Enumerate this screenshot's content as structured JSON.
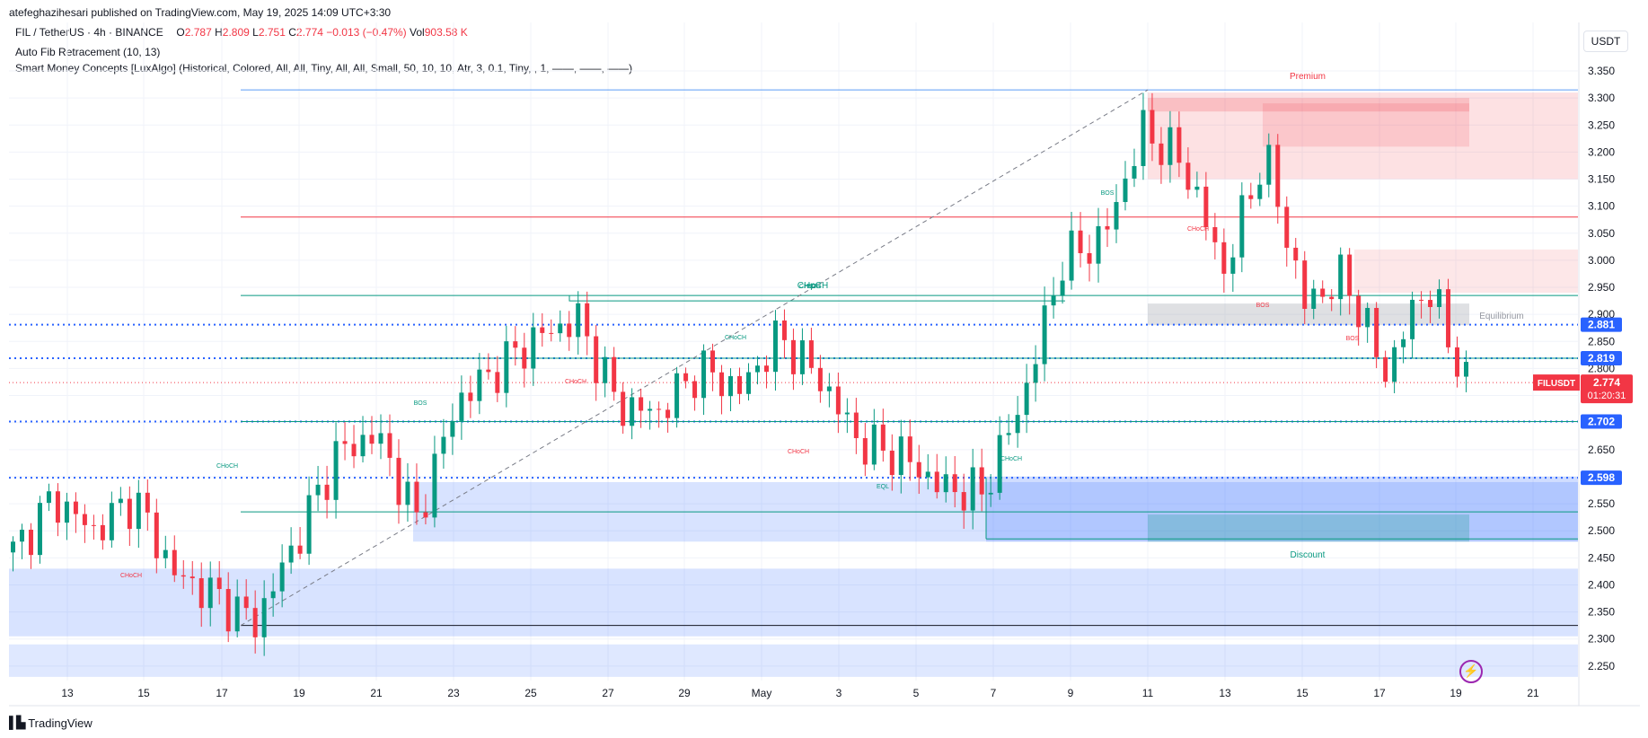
{
  "publisher": "atefeghazihesari published on TradingView.com, May 19, 2025 14:09 UTC+3:30",
  "legend": {
    "symbol": "FIL / TetherUS · 4h · BINANCE",
    "o_label": "O",
    "o": "2.787",
    "h_label": "H",
    "h": "2.809",
    "l_label": "L",
    "l": "2.751",
    "c_label": "C",
    "c": "2.774",
    "change": "−0.013 (−0.47%)",
    "vol_label": "Vol",
    "vol": "903.58 K",
    "indicator1": "Auto Fib Retracement (10, 13)",
    "indicator2": "Smart Money Concepts [LuxAlgo] (Historical, Colored, All, All, Tiny, All, All, Small, 50, 10, 10, Atr, 3, 0.1, Tiny, , 1, ——, ——, ——)"
  },
  "currency": "USDT",
  "footer": {
    "brand": "TradingView"
  },
  "colors": {
    "up": "#089981",
    "down": "#f23645",
    "premium": "#f23645",
    "discount": "#2962ff",
    "fib": "#2962ff"
  },
  "chart_data": {
    "type": "candlestick",
    "symbol": "FILUSDT",
    "timeframe": "4h",
    "ylim": [
      2.22,
      3.37
    ],
    "y_ticks": [
      "3.350",
      "3.300",
      "3.250",
      "3.200",
      "3.150",
      "3.100",
      "3.050",
      "3.000",
      "2.950",
      "2.900",
      "2.850",
      "2.800",
      "2.750",
      "2.700",
      "2.650",
      "2.600",
      "2.550",
      "2.500",
      "2.450",
      "2.400",
      "2.350",
      "2.300",
      "2.250"
    ],
    "x_ticks": [
      "13",
      "15",
      "17",
      "19",
      "21",
      "23",
      "25",
      "27",
      "29",
      "May",
      "3",
      "5",
      "7",
      "9",
      "11",
      "13",
      "15",
      "17",
      "19",
      "21"
    ],
    "price_labels": [
      {
        "text": "2.881",
        "value": 2.881
      },
      {
        "text": "2.819",
        "value": 2.819
      },
      {
        "text": "2.702",
        "value": 2.702
      },
      {
        "text": "2.598",
        "value": 2.598
      }
    ],
    "last_price": {
      "symbol": "FILUSDT",
      "value": "2.774",
      "countdown": "01:20:31"
    },
    "zone_labels": {
      "premium": "Premium",
      "equilibrium": "Equilibrium",
      "discount": "Discount"
    },
    "structure_labels": [
      "CHoCH",
      "BOS",
      "CHoCH",
      "CHoCH",
      "CHoCH",
      "CHoCH",
      "CHoCH",
      "BOS",
      "EQL",
      "CHoCH",
      "CHoCH",
      "BOS",
      "BOS",
      "BOS"
    ],
    "candles_ohlc_keypoints": [
      {
        "x": "Apr 12",
        "close": 2.46
      },
      {
        "x": "Apr 13",
        "close": 2.56
      },
      {
        "x": "Apr 14",
        "close": 2.5
      },
      {
        "x": "Apr 15",
        "close": 2.56
      },
      {
        "x": "Apr 16",
        "close": 2.42
      },
      {
        "x": "Apr 17",
        "close": 2.38
      },
      {
        "x": "Apr 17",
        "close": 2.33
      },
      {
        "x": "Apr 19",
        "close": 2.48
      },
      {
        "x": "Apr 20",
        "close": 2.64
      },
      {
        "x": "Apr 21",
        "close": 2.68
      },
      {
        "x": "Apr 22",
        "close": 2.52
      },
      {
        "x": "Apr 23",
        "close": 2.74
      },
      {
        "x": "Apr 24",
        "close": 2.8
      },
      {
        "x": "Apr 25",
        "close": 2.86
      },
      {
        "x": "Apr 26",
        "close": 2.89
      },
      {
        "x": "Apr 27",
        "close": 2.73
      },
      {
        "x": "Apr 28",
        "close": 2.72
      },
      {
        "x": "Apr 29",
        "close": 2.8
      },
      {
        "x": "May 1",
        "close": 2.76
      },
      {
        "x": "May 2",
        "close": 2.86
      },
      {
        "x": "May 3",
        "close": 2.78
      },
      {
        "x": "May 4",
        "close": 2.66
      },
      {
        "x": "May 5",
        "close": 2.64
      },
      {
        "x": "May 6",
        "close": 2.58
      },
      {
        "x": "May 7",
        "close": 2.57
      },
      {
        "x": "May 8",
        "close": 2.74
      },
      {
        "x": "May 9",
        "close": 3.0
      },
      {
        "x": "May 10",
        "close": 3.04
      },
      {
        "x": "May 11",
        "close": 3.24
      },
      {
        "x": "May 12",
        "close": 3.18
      },
      {
        "x": "May 13",
        "close": 2.98
      },
      {
        "x": "May 14",
        "close": 3.2
      },
      {
        "x": "May 15",
        "close": 2.92
      },
      {
        "x": "May 16",
        "close": 2.97
      },
      {
        "x": "May 17",
        "close": 2.79
      },
      {
        "x": "May 18",
        "close": 2.96
      },
      {
        "x": "May 19",
        "close": 2.774
      }
    ]
  }
}
